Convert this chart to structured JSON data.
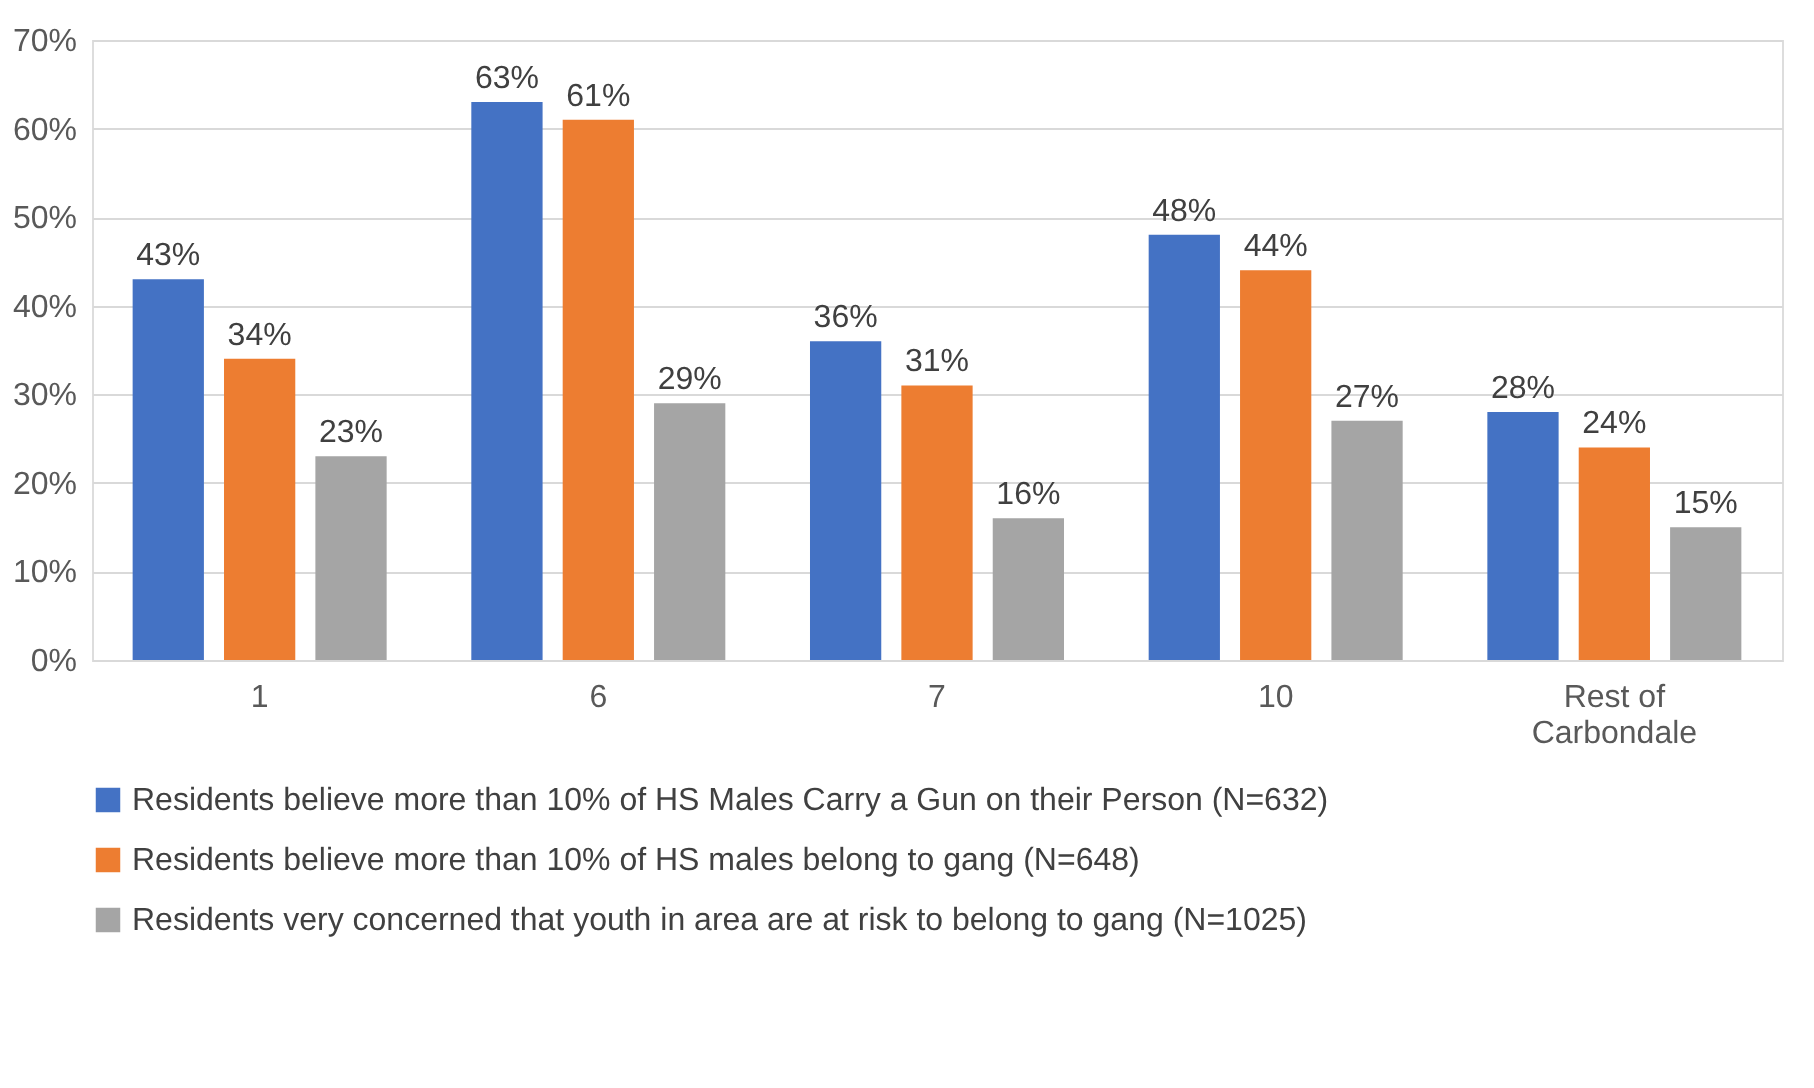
{
  "chart_data": {
    "type": "bar",
    "categories": [
      "1",
      "6",
      "7",
      "10",
      "Rest of\nCarbondale"
    ],
    "series": [
      {
        "name": "Residents believe more than 10% of HS Males Carry a Gun on their Person (N=632)",
        "color": "#4472c4",
        "values": [
          43,
          63,
          36,
          48,
          28
        ],
        "value_labels": [
          "43%",
          "63%",
          "36%",
          "48%",
          "28%"
        ]
      },
      {
        "name": "Residents believe more than 10% of HS males belong to gang (N=648)",
        "color": "#ed7d31",
        "values": [
          34,
          61,
          31,
          44,
          24
        ],
        "value_labels": [
          "34%",
          "61%",
          "31%",
          "44%",
          "24%"
        ]
      },
      {
        "name": "Residents very concerned that youth in area are at risk to belong to gang (N=1025)",
        "color": "#a5a5a5",
        "values": [
          23,
          29,
          16,
          27,
          15
        ],
        "value_labels": [
          "23%",
          "29%",
          "16%",
          "27%",
          "15%"
        ]
      }
    ],
    "ylim": [
      0,
      70
    ],
    "yticks": [
      {
        "value": 0,
        "label": "0%"
      },
      {
        "value": 10,
        "label": "10%"
      },
      {
        "value": 20,
        "label": "20%"
      },
      {
        "value": 30,
        "label": "30%"
      },
      {
        "value": 40,
        "label": "40%"
      },
      {
        "value": 50,
        "label": "50%"
      },
      {
        "value": 60,
        "label": "60%"
      },
      {
        "value": 70,
        "label": "70%"
      }
    ],
    "grid": "y",
    "legend": "bottom"
  }
}
